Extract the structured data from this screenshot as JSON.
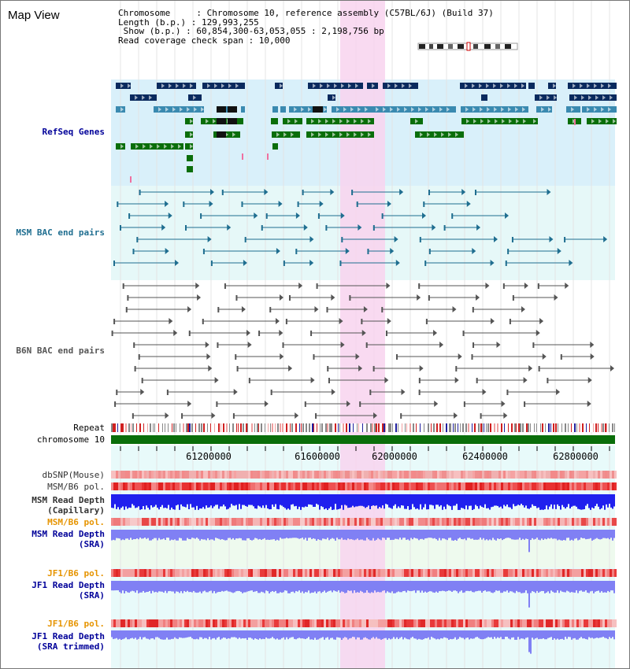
{
  "view": {
    "title": "Map View",
    "info_lines": [
      "Chromosome     : Chromosome 10, reference assembly (C57BL/6J) (Build 37)",
      "Length (b.p.) : 129,993,255",
      " Show (b.p.) : 60,854,300-63,053,055 : 2,198,756 bp",
      "Read coverage check span : 10,000"
    ]
  },
  "tracks": {
    "refseq": "RefSeq Genes",
    "msm_bac": "MSM BAC end pairs",
    "b6n_bac": "B6N BAC end pairs",
    "repeat": "Repeat",
    "chrom": "chromosome 10",
    "dbsnp": "dbSNP(Mouse)",
    "msm_b6_pol_1": "MSM/B6 pol.",
    "msm_read_depth_cap_1": "MSM Read Depth",
    "msm_read_depth_cap_2": "(Capillary)",
    "msm_b6_pol_2": "MSM/B6 pol.",
    "msm_read_depth_sra_1": "MSM Read Depth",
    "msm_read_depth_sra_2": "(SRA)",
    "jf1_b6_pol_1": "JF1/B6 pol.",
    "jf1_read_depth_sra_1": "JF1 Read Depth",
    "jf1_read_depth_sra_2": "(SRA)",
    "jf1_b6_pol_2": "JF1/B6 pol.",
    "jf1_read_depth_trim_1": "JF1 Read Depth",
    "jf1_read_depth_trim_2": "(SRA trimmed)"
  },
  "axis": {
    "ticks": [
      "61200000",
      "61600000",
      "62000000",
      "62400000",
      "62800000"
    ]
  },
  "colors": {
    "refseq_bg": "#d9f0fa",
    "msm_bg": "#e6f8f8",
    "highlight": "#f8d4ee",
    "navy": "#0a2a5e",
    "steel": "#3a8ab0",
    "green": "#0a6e0a",
    "teal": "#1f6e90",
    "gray": "#555555",
    "chrom_bar": "#0a6e0a",
    "depth_blue": "#2020ee",
    "depth_light": "#8080f4",
    "orange_label": "#e69400",
    "navy_label": "#000099"
  }
}
